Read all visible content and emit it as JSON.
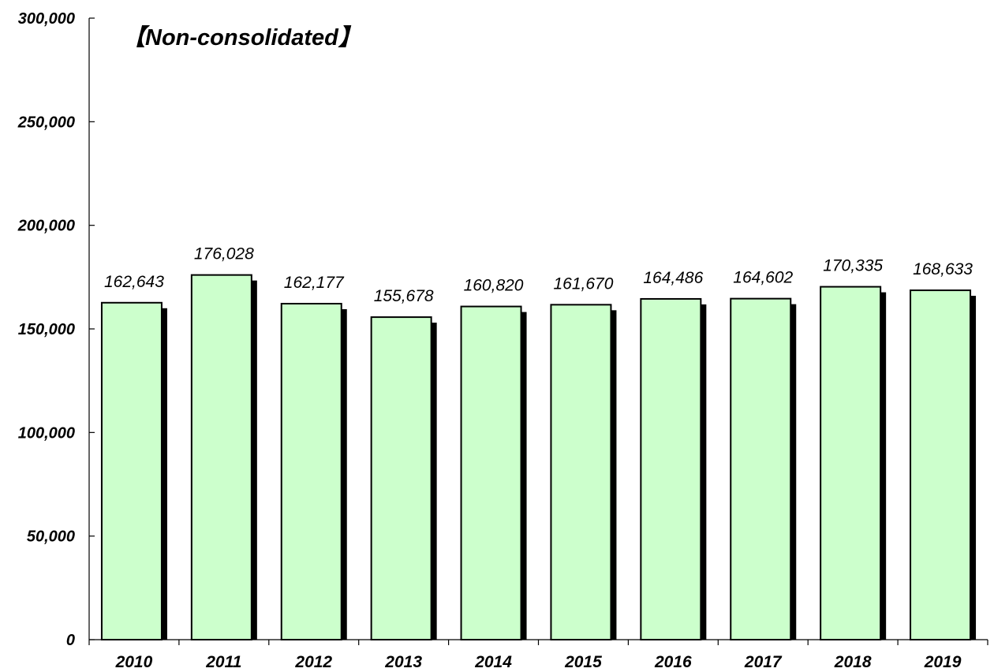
{
  "chart_data": {
    "type": "bar",
    "title": "【Non-consolidated】",
    "xlabel": "",
    "ylabel": "",
    "categories": [
      "2010",
      "2011",
      "2012",
      "2013",
      "2014",
      "2015",
      "2016",
      "2017",
      "2018",
      "2019"
    ],
    "values": [
      162643,
      176028,
      162177,
      155678,
      160820,
      161670,
      164486,
      164602,
      170335,
      168633
    ],
    "value_labels": [
      "162,643",
      "176,028",
      "162,177",
      "155,678",
      "160,820",
      "161,670",
      "164,486",
      "164,602",
      "170,335",
      "168,633"
    ],
    "ylim": [
      0,
      300000
    ],
    "yticks": [
      0,
      50000,
      100000,
      150000,
      200000,
      250000,
      300000
    ],
    "ytick_labels": [
      "0",
      "50,000",
      "100,000",
      "150,000",
      "200,000",
      "250,000",
      "300,000"
    ],
    "grid": false,
    "legend": "none",
    "colors": {
      "bar_fill": "#ccffcc",
      "bar_stroke": "#000000",
      "bar_shadow": "#000000"
    }
  }
}
